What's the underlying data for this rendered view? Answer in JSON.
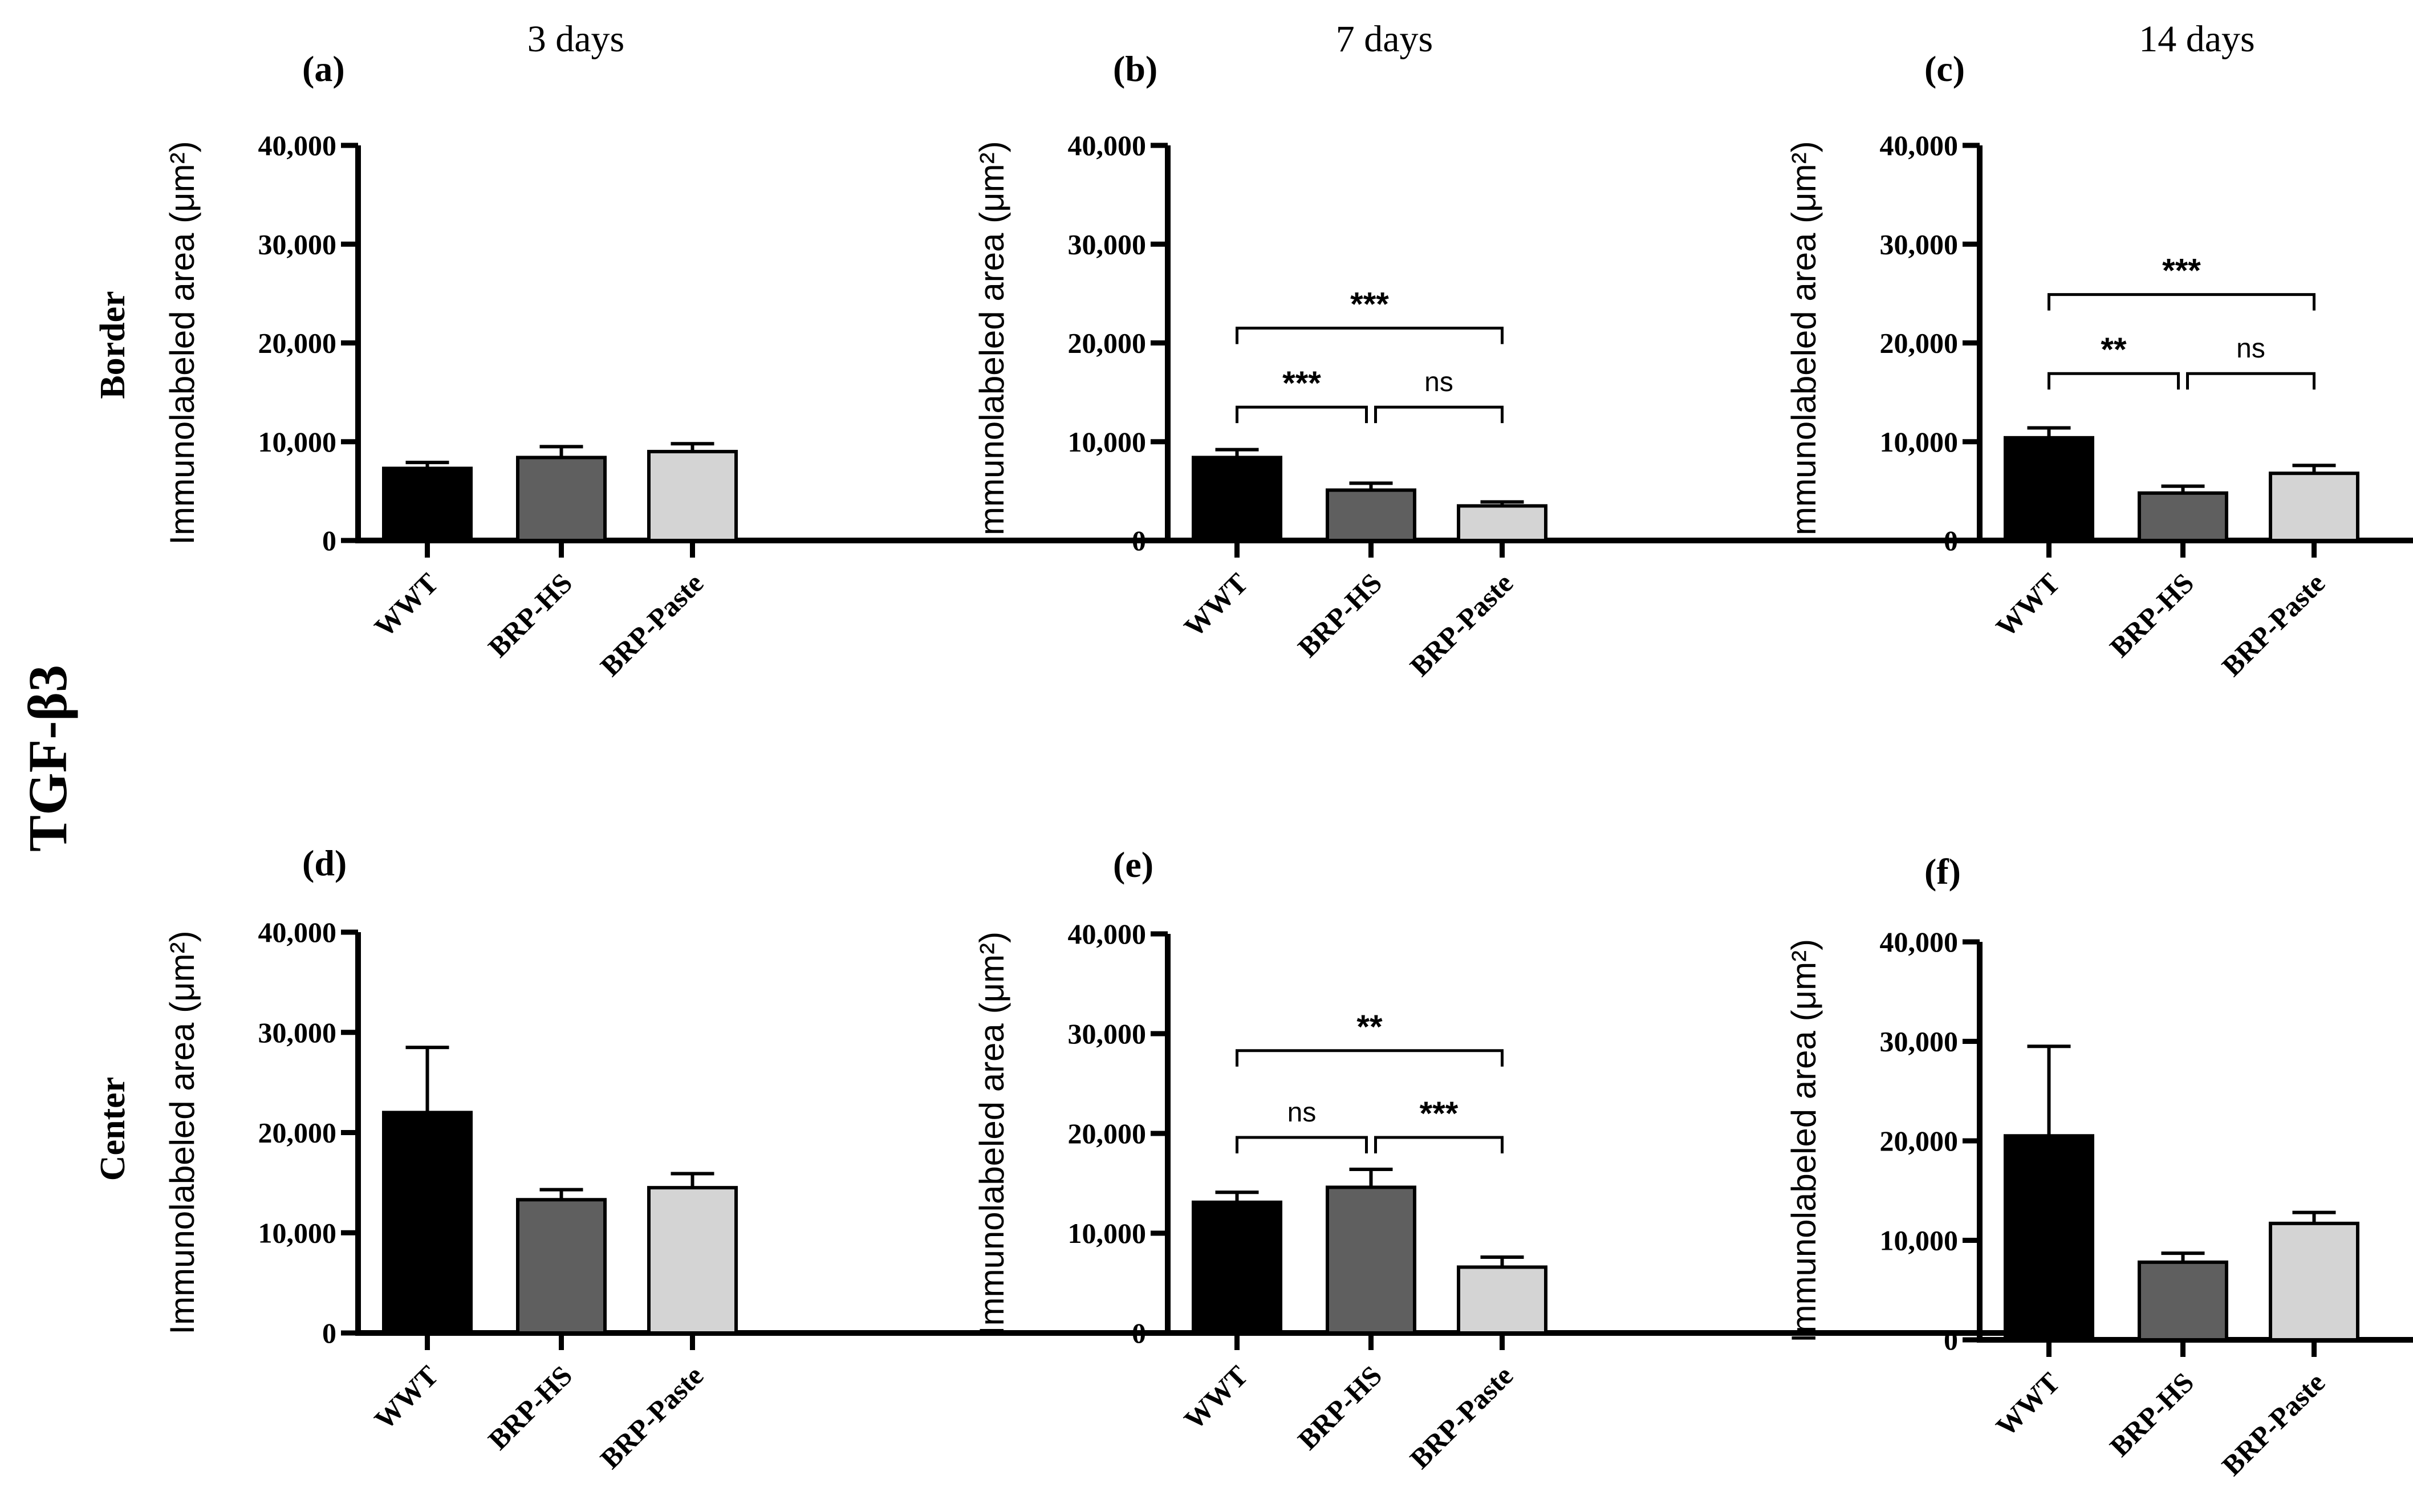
{
  "figure": {
    "marker": "TGF-β3",
    "column_titles": [
      "3 days",
      "7 days",
      "14 days"
    ],
    "row_labels": [
      "Border",
      "Center"
    ],
    "bar_colors": [
      "#000000",
      "#5f5f5f",
      "#d4d4d4"
    ]
  },
  "chart_data": [
    {
      "panel": "(a)",
      "type": "bar",
      "time": "3 days",
      "region": "Border",
      "categories": [
        "WWT",
        "BRP-HS",
        "BRP-Paste"
      ],
      "values": [
        7300,
        8400,
        9000
      ],
      "errors": [
        600,
        1100,
        800
      ],
      "ylabel": "Immunolabeled area (μm²)",
      "ylim": [
        0,
        40000
      ],
      "yticks": [
        0,
        10000,
        20000,
        30000,
        40000
      ],
      "ytick_labels": [
        "0",
        "10,000",
        "20,000",
        "30,000",
        "40,000"
      ],
      "significance": []
    },
    {
      "panel": "(b)",
      "type": "bar",
      "time": "7 days",
      "region": "Border",
      "categories": [
        "WWT",
        "BRP-HS",
        "BRP-Paste"
      ],
      "values": [
        8400,
        5100,
        3500
      ],
      "errors": [
        800,
        700,
        400
      ],
      "ylabel": "Immunolabeled area (μm²)",
      "ylim": [
        0,
        40000
      ],
      "yticks": [
        0,
        10000,
        20000,
        30000,
        40000
      ],
      "ytick_labels": [
        "0",
        "10,000",
        "20,000",
        "30,000",
        "40,000"
      ],
      "significance": [
        {
          "from": 0,
          "to": 1,
          "y": 13500,
          "label": "***"
        },
        {
          "from": 1,
          "to": 2,
          "y": 13500,
          "label": "ns"
        },
        {
          "from": 0,
          "to": 2,
          "y": 21500,
          "label": "***"
        }
      ]
    },
    {
      "panel": "(c)",
      "type": "bar",
      "time": "14 days",
      "region": "Border",
      "categories": [
        "WWT",
        "BRP-HS",
        "BRP-Paste"
      ],
      "values": [
        10400,
        4800,
        6800
      ],
      "errors": [
        1000,
        700,
        800
      ],
      "ylabel": "Immunolabeled area (μm²)",
      "ylim": [
        0,
        40000
      ],
      "yticks": [
        0,
        10000,
        20000,
        30000,
        40000
      ],
      "ytick_labels": [
        "0",
        "10,000",
        "20,000",
        "30,000",
        "40,000"
      ],
      "significance": [
        {
          "from": 0,
          "to": 1,
          "y": 16900,
          "label": "**"
        },
        {
          "from": 1,
          "to": 2,
          "y": 16900,
          "label": "ns"
        },
        {
          "from": 0,
          "to": 2,
          "y": 24900,
          "label": "***"
        }
      ]
    },
    {
      "panel": "(d)",
      "type": "bar",
      "time": "3 days",
      "region": "Center",
      "categories": [
        "WWT",
        "BRP-HS",
        "BRP-Paste"
      ],
      "values": [
        22000,
        13300,
        14500
      ],
      "errors": [
        6500,
        1000,
        1400
      ],
      "ylabel": "Immunolabeled area (μm²)",
      "ylim": [
        0,
        40000
      ],
      "yticks": [
        0,
        10000,
        20000,
        30000,
        40000
      ],
      "ytick_labels": [
        "0",
        "10,000",
        "20,000",
        "30,000",
        "40,000"
      ],
      "significance": []
    },
    {
      "panel": "(e)",
      "type": "bar",
      "time": "7 days",
      "region": "Center",
      "categories": [
        "WWT",
        "BRP-HS",
        "BRP-Paste"
      ],
      "values": [
        13100,
        14600,
        6600
      ],
      "errors": [
        1000,
        1800,
        1000
      ],
      "ylabel": "Immunolabeled area (μm²)",
      "ylim": [
        0,
        40000
      ],
      "yticks": [
        0,
        10000,
        20000,
        30000,
        40000
      ],
      "ytick_labels": [
        "0",
        "10,000",
        "20,000",
        "30,000",
        "40,000"
      ],
      "significance": [
        {
          "from": 0,
          "to": 1,
          "y": 19600,
          "label": "ns"
        },
        {
          "from": 1,
          "to": 2,
          "y": 19600,
          "label": "***"
        },
        {
          "from": 0,
          "to": 2,
          "y": 28300,
          "label": "**"
        }
      ]
    },
    {
      "panel": "(f)",
      "type": "bar",
      "time": "14 days",
      "region": "Center",
      "categories": [
        "WWT",
        "BRP-HS",
        "BRP-Paste"
      ],
      "values": [
        20500,
        7800,
        11700
      ],
      "errors": [
        9000,
        900,
        1100
      ],
      "ylabel": "Immunolabeled area (μm²)",
      "ylim": [
        0,
        40000
      ],
      "yticks": [
        0,
        10000,
        20000,
        30000,
        40000
      ],
      "ytick_labels": [
        "0",
        "10,000",
        "20,000",
        "30,000",
        "40,000"
      ],
      "significance": []
    }
  ]
}
